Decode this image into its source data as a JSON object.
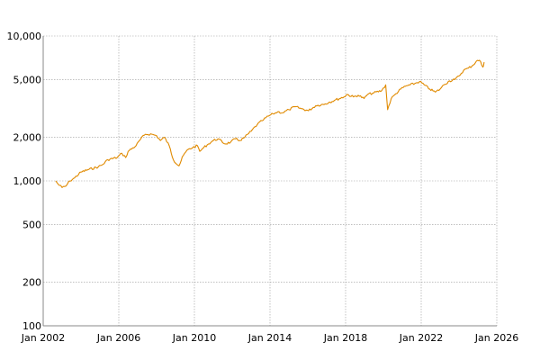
{
  "chart_data": {
    "type": "line",
    "title": "",
    "xlabel": "",
    "ylabel": "",
    "yscale": "log",
    "ylim": [
      100,
      10000
    ],
    "xlim": [
      "2002-01-01",
      "2026-01-01"
    ],
    "grid": true,
    "line_color": "#e08a00",
    "y_ticks": [
      {
        "value": 100,
        "label": "100"
      },
      {
        "value": 200,
        "label": "200"
      },
      {
        "value": 500,
        "label": "500"
      },
      {
        "value": 1000,
        "label": "1,000"
      },
      {
        "value": 2000,
        "label": "2,000"
      },
      {
        "value": 5000,
        "label": "5,000"
      },
      {
        "value": 10000,
        "label": "10,000"
      }
    ],
    "x_ticks": [
      {
        "value": "2002-01-01",
        "label": "Jan 2002"
      },
      {
        "value": "2006-01-01",
        "label": "Jan 2006"
      },
      {
        "value": "2010-01-01",
        "label": "Jan 2010"
      },
      {
        "value": "2014-01-01",
        "label": "Jan 2014"
      },
      {
        "value": "2018-01-01",
        "label": "Jan 2018"
      },
      {
        "value": "2022-01-01",
        "label": "Jan 2022"
      },
      {
        "value": "2026-01-01",
        "label": "Jan 2026"
      }
    ],
    "series": [
      {
        "x": [
          "2002-09-01",
          "2002-10-15",
          "2003-01-01",
          "2003-03-15",
          "2003-06-01",
          "2003-09-01",
          "2004-01-01",
          "2004-06-01",
          "2004-12-01",
          "2005-03-01",
          "2005-06-01",
          "2005-12-01",
          "2006-03-01",
          "2006-05-15",
          "2006-07-01",
          "2006-12-01",
          "2007-03-01",
          "2007-06-01",
          "2007-10-01",
          "2008-01-01",
          "2008-03-15",
          "2008-06-01",
          "2008-09-01",
          "2008-11-20",
          "2009-03-09",
          "2009-06-01",
          "2009-09-01",
          "2009-12-01",
          "2010-03-01",
          "2010-04-15",
          "2010-07-01",
          "2010-10-01",
          "2011-01-01",
          "2011-04-01",
          "2011-08-15",
          "2011-12-01",
          "2012-03-01",
          "2012-06-01",
          "2012-09-01",
          "2013-01-01",
          "2013-05-01",
          "2013-08-01",
          "2013-12-01",
          "2014-03-01",
          "2014-06-01",
          "2014-09-01",
          "2015-01-01",
          "2015-05-01",
          "2015-09-01",
          "2016-01-15",
          "2016-06-01",
          "2016-12-01",
          "2017-03-01",
          "2017-06-01",
          "2017-12-01",
          "2018-02-01",
          "2018-06-01",
          "2018-09-01",
          "2018-12-24",
          "2019-03-01",
          "2019-07-01",
          "2019-12-01",
          "2020-02-15",
          "2020-03-23",
          "2020-06-01",
          "2020-09-01",
          "2020-12-01",
          "2021-03-01",
          "2021-06-01",
          "2021-09-01",
          "2021-12-01",
          "2022-03-01",
          "2022-06-15",
          "2022-10-01",
          "2023-01-01",
          "2023-03-15",
          "2023-07-01",
          "2023-10-15",
          "2024-01-01",
          "2024-04-01",
          "2024-07-01",
          "2024-10-01",
          "2024-12-01",
          "2025-02-01",
          "2025-04-08",
          "2025-05-01"
        ],
        "y": [
          1000,
          950,
          900,
          920,
          1000,
          1050,
          1150,
          1200,
          1250,
          1300,
          1400,
          1450,
          1550,
          1450,
          1600,
          1750,
          1950,
          2100,
          2100,
          2050,
          1900,
          2000,
          1750,
          1400,
          1270,
          1500,
          1650,
          1700,
          1750,
          1600,
          1700,
          1800,
          1900,
          1950,
          1800,
          1850,
          1950,
          1900,
          2000,
          2200,
          2450,
          2600,
          2800,
          2900,
          3000,
          2950,
          3100,
          3250,
          3150,
          3050,
          3300,
          3400,
          3500,
          3600,
          3800,
          3950,
          3800,
          3900,
          3700,
          3950,
          4050,
          4200,
          4600,
          3100,
          3700,
          4000,
          4300,
          4500,
          4600,
          4700,
          4850,
          4600,
          4300,
          4100,
          4300,
          4600,
          4900,
          5000,
          5300,
          5800,
          6000,
          6300,
          6700,
          6800,
          6100,
          6600
        ]
      }
    ]
  }
}
